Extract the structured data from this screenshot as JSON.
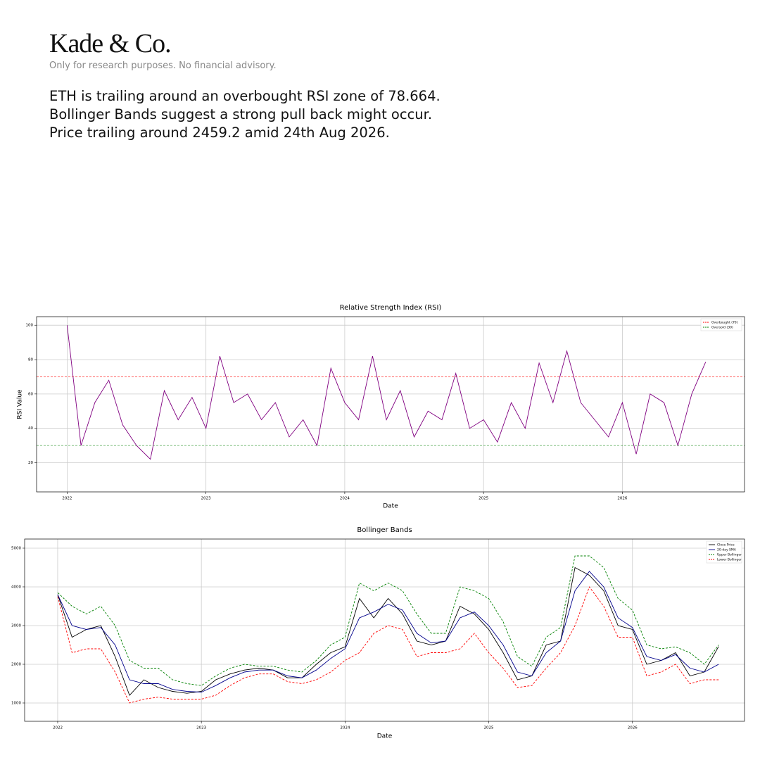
{
  "header": {
    "brand": "Kade & Co.",
    "disclaimer": "Only for research purposes. No financial advisory.",
    "lines": [
      "ETH is trailing around an overbought RSI zone of 78.664.",
      "Bollinger Bands suggest a strong pull back might occur.",
      "Price trailing around 2459.2 amid 24th Aug 2026."
    ]
  },
  "chart_data": [
    {
      "type": "line",
      "title": "Relative Strength Index (RSI)",
      "x_label": "Date",
      "y_label": "RSI Value",
      "x": [
        2022.0,
        2022.1,
        2022.2,
        2022.3,
        2022.4,
        2022.5,
        2022.6,
        2022.7,
        2022.8,
        2022.9,
        2023.0,
        2023.1,
        2023.2,
        2023.3,
        2023.4,
        2023.5,
        2023.6,
        2023.7,
        2023.8,
        2023.9,
        2024.0,
        2024.1,
        2024.2,
        2024.3,
        2024.4,
        2024.5,
        2024.6,
        2024.7,
        2024.8,
        2024.9,
        2025.0,
        2025.1,
        2025.2,
        2025.3,
        2025.4,
        2025.5,
        2025.6,
        2025.7,
        2025.8,
        2025.9,
        2026.0,
        2026.1,
        2026.2,
        2026.3,
        2026.4,
        2026.5,
        2026.6
      ],
      "series": [
        {
          "name": "RSI",
          "color": "#800080",
          "dash": false,
          "values": [
            100,
            30,
            55,
            68,
            42,
            30,
            22,
            62,
            45,
            58,
            40,
            82,
            55,
            60,
            45,
            55,
            35,
            45,
            30,
            75,
            55,
            45,
            82,
            45,
            62,
            35,
            50,
            45,
            72,
            40,
            45,
            32,
            55,
            40,
            78,
            55,
            85,
            55,
            45,
            35,
            55,
            25,
            60,
            55,
            30,
            60,
            78.664
          ]
        }
      ],
      "reference_lines": [
        {
          "name": "Overbought (70)",
          "value": 70,
          "color": "#ff0000"
        },
        {
          "name": "Oversold (30)",
          "value": 30,
          "color": "#008000"
        }
      ],
      "xlim": [
        2021.78,
        2026.88
      ],
      "xticks": [
        2022,
        2023,
        2024,
        2025,
        2026
      ],
      "ylim": [
        3,
        105
      ],
      "yticks": [
        20,
        40,
        60,
        80,
        100
      ],
      "grid": true,
      "legend": "upper-right"
    },
    {
      "type": "line",
      "title": "Bollinger Bands",
      "x_label": "Date",
      "x": [
        2022.0,
        2022.1,
        2022.2,
        2022.3,
        2022.4,
        2022.5,
        2022.6,
        2022.7,
        2022.8,
        2022.9,
        2023.0,
        2023.1,
        2023.2,
        2023.3,
        2023.4,
        2023.5,
        2023.6,
        2023.7,
        2023.8,
        2023.9,
        2024.0,
        2024.1,
        2024.2,
        2024.3,
        2024.4,
        2024.5,
        2024.6,
        2024.7,
        2024.8,
        2024.9,
        2025.0,
        2025.1,
        2025.2,
        2025.3,
        2025.4,
        2025.5,
        2025.6,
        2025.7,
        2025.8,
        2025.9,
        2026.0,
        2026.1,
        2026.2,
        2026.3,
        2026.4,
        2026.5,
        2026.6
      ],
      "series": [
        {
          "name": "Close Price",
          "color": "#000000",
          "dash": false,
          "values": [
            3800,
            2700,
            2900,
            3000,
            2200,
            1200,
            1600,
            1400,
            1300,
            1250,
            1300,
            1600,
            1750,
            1850,
            1900,
            1850,
            1650,
            1650,
            2000,
            2300,
            2450,
            3700,
            3200,
            3700,
            3300,
            2600,
            2500,
            2600,
            3500,
            3300,
            2900,
            2300,
            1600,
            1700,
            2500,
            2600,
            4500,
            4300,
            3900,
            3000,
            2900,
            2000,
            2100,
            2300,
            1700,
            1800,
            2459.2
          ]
        },
        {
          "name": "20-day SMA",
          "color": "#00008b",
          "dash": false,
          "values": [
            3800,
            3000,
            2900,
            2950,
            2500,
            1600,
            1500,
            1500,
            1350,
            1300,
            1280,
            1450,
            1650,
            1800,
            1850,
            1850,
            1700,
            1650,
            1850,
            2150,
            2400,
            3200,
            3350,
            3550,
            3400,
            2800,
            2550,
            2600,
            3200,
            3350,
            3000,
            2500,
            1800,
            1700,
            2300,
            2600,
            3900,
            4400,
            4000,
            3200,
            2950,
            2200,
            2100,
            2250,
            1900,
            1800,
            2000
          ]
        },
        {
          "name": "Upper Bollinger",
          "color": "#008000",
          "dash": true,
          "values": [
            3850,
            3500,
            3300,
            3500,
            3000,
            2100,
            1900,
            1900,
            1600,
            1500,
            1450,
            1700,
            1900,
            2000,
            1950,
            1950,
            1850,
            1800,
            2100,
            2500,
            2700,
            4100,
            3900,
            4100,
            3900,
            3300,
            2800,
            2800,
            4000,
            3900,
            3700,
            3100,
            2200,
            1950,
            2700,
            2950,
            4800,
            4800,
            4500,
            3700,
            3400,
            2500,
            2400,
            2450,
            2300,
            2000,
            2500
          ]
        },
        {
          "name": "Lower Bollinger",
          "color": "#ff0000",
          "dash": true,
          "values": [
            3750,
            2300,
            2400,
            2400,
            1800,
            1000,
            1100,
            1150,
            1100,
            1100,
            1100,
            1200,
            1450,
            1650,
            1750,
            1750,
            1550,
            1500,
            1600,
            1800,
            2100,
            2300,
            2800,
            3000,
            2900,
            2200,
            2300,
            2300,
            2400,
            2800,
            2300,
            1900,
            1400,
            1450,
            1900,
            2300,
            3000,
            4000,
            3500,
            2700,
            2700,
            1700,
            1800,
            2000,
            1500,
            1600,
            1600
          ]
        }
      ],
      "xlim": [
        2021.77,
        2026.78
      ],
      "xticks": [
        2022,
        2023,
        2024,
        2025,
        2026
      ],
      "ylim": [
        527,
        5236
      ],
      "yticks": [
        1000,
        2000,
        3000,
        4000,
        5000
      ],
      "grid": true,
      "legend": "upper-right"
    }
  ]
}
